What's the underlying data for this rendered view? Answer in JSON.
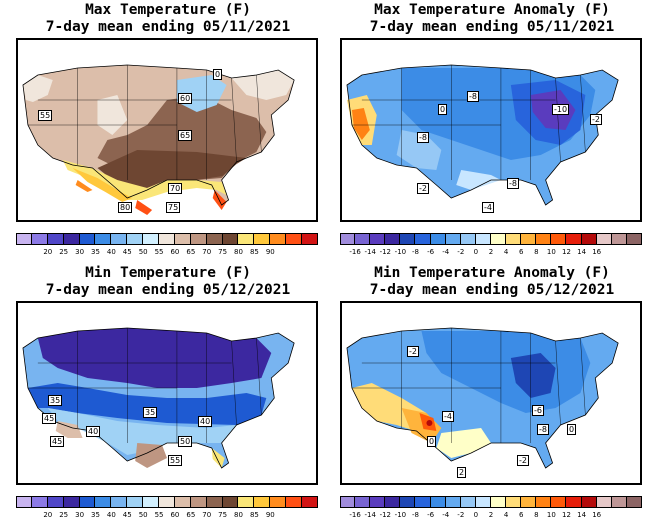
{
  "panels": [
    {
      "id": "max_temp",
      "title_line1": "Max Temperature (F)",
      "title_line2": "7-day mean ending 05/11/2021",
      "colorbar": {
        "colors": [
          "#c8b4f0",
          "#8c7ae6",
          "#5046c8",
          "#3c28a0",
          "#1e5ad2",
          "#3c8ce6",
          "#78b4f0",
          "#a0d2f5",
          "#d2f0ff",
          "#f0e6dc",
          "#dcbeaa",
          "#be9682",
          "#8c6450",
          "#6e4632",
          "#fae678",
          "#ffc83c",
          "#ff8c1e",
          "#ff5014",
          "#d21414"
        ],
        "labels": [
          "20",
          "25",
          "30",
          "35",
          "40",
          "45",
          "50",
          "55",
          "60",
          "65",
          "70",
          "75",
          "80",
          "85",
          "90"
        ]
      },
      "contour_labels": [
        "55",
        "60",
        "65",
        "70",
        "75",
        "80",
        "0"
      ]
    },
    {
      "id": "max_anom",
      "title_line1": "Max Temperature Anomaly (F)",
      "title_line2": "7-day mean ending 05/11/2021",
      "colorbar": {
        "colors": [
          "#a08cdc",
          "#7864d2",
          "#5a3cbe",
          "#3c28a0",
          "#1e46b4",
          "#2864dc",
          "#3c8ce6",
          "#64aaf0",
          "#96c8f5",
          "#c8e6ff",
          "#ffffc8",
          "#ffdc78",
          "#ffb43c",
          "#ff8214",
          "#ff5a0a",
          "#e61e0a",
          "#b40a0a",
          "#e6c8c8",
          "#be9696",
          "#8c6464"
        ],
        "labels": [
          "-16",
          "-14",
          "-12",
          "-10",
          "-8",
          "-6",
          "-4",
          "-2",
          "0",
          "2",
          "4",
          "6",
          "8",
          "10",
          "12",
          "14",
          "16"
        ]
      },
      "contour_labels": [
        "-8",
        "-10",
        "-8",
        "-8",
        "-2",
        "-4",
        "-2",
        "0"
      ]
    },
    {
      "id": "min_temp",
      "title_line1": "Min Temperature (F)",
      "title_line2": "7-day mean ending 05/12/2021",
      "colorbar": {
        "colors": [
          "#c8b4f0",
          "#8c7ae6",
          "#5046c8",
          "#3c28a0",
          "#1e5ad2",
          "#3c8ce6",
          "#78b4f0",
          "#a0d2f5",
          "#d2f0ff",
          "#f0e6dc",
          "#dcbeaa",
          "#be9682",
          "#8c6450",
          "#6e4632",
          "#fae678",
          "#ffc83c",
          "#ff8c1e",
          "#ff5014",
          "#d21414"
        ],
        "labels": [
          "20",
          "25",
          "30",
          "35",
          "40",
          "45",
          "50",
          "55",
          "60",
          "65",
          "70",
          "75",
          "80",
          "85",
          "90"
        ]
      },
      "contour_labels": [
        "35",
        "35",
        "45",
        "40",
        "40",
        "45",
        "50",
        "55"
      ]
    },
    {
      "id": "min_anom",
      "title_line1": "Min Temperature Anomaly (F)",
      "title_line2": "7-day mean ending 05/12/2021",
      "colorbar": {
        "colors": [
          "#a08cdc",
          "#7864d2",
          "#5a3cbe",
          "#3c28a0",
          "#1e46b4",
          "#2864dc",
          "#3c8ce6",
          "#64aaf0",
          "#96c8f5",
          "#c8e6ff",
          "#ffffc8",
          "#ffdc78",
          "#ffb43c",
          "#ff8214",
          "#ff5a0a",
          "#e61e0a",
          "#b40a0a",
          "#e6c8c8",
          "#be9696",
          "#8c6464"
        ],
        "labels": [
          "-16",
          "-14",
          "-12",
          "-10",
          "-8",
          "-6",
          "-4",
          "-2",
          "0",
          "2",
          "4",
          "6",
          "8",
          "10",
          "12",
          "14",
          "16"
        ]
      },
      "contour_labels": [
        "-6",
        "-8",
        "-4",
        "0",
        "-2",
        "2",
        "0",
        "-2"
      ]
    }
  ]
}
